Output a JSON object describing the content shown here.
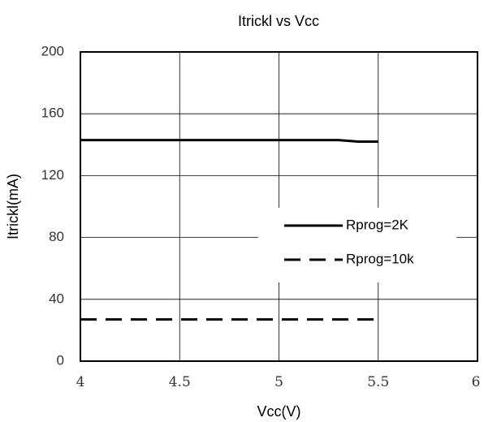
{
  "chart_data": {
    "type": "line",
    "title": "Itrickl vs Vcc",
    "xlabel": "Vcc(V)",
    "ylabel": "Itrickl(mA)",
    "xlim": [
      4,
      6
    ],
    "ylim": [
      0,
      200
    ],
    "x_ticks": [
      "4",
      "4.5",
      "5",
      "5.5",
      "6"
    ],
    "y_ticks": [
      "0",
      "40",
      "80",
      "120",
      "160",
      "200"
    ],
    "grid": true,
    "legend_position": "right",
    "series": [
      {
        "name": "Rprog=2K",
        "style": "solid",
        "color": "#000000",
        "points": [
          {
            "x": 4.0,
            "y": 143
          },
          {
            "x": 4.5,
            "y": 143
          },
          {
            "x": 5.0,
            "y": 143
          },
          {
            "x": 5.2,
            "y": 143
          },
          {
            "x": 5.3,
            "y": 143
          },
          {
            "x": 5.4,
            "y": 142
          },
          {
            "x": 5.5,
            "y": 142
          }
        ]
      },
      {
        "name": "Rprog=10k",
        "style": "dashed",
        "color": "#000000",
        "points": [
          {
            "x": 4.0,
            "y": 27
          },
          {
            "x": 4.5,
            "y": 27
          },
          {
            "x": 5.0,
            "y": 27
          },
          {
            "x": 5.5,
            "y": 27
          }
        ]
      }
    ]
  }
}
